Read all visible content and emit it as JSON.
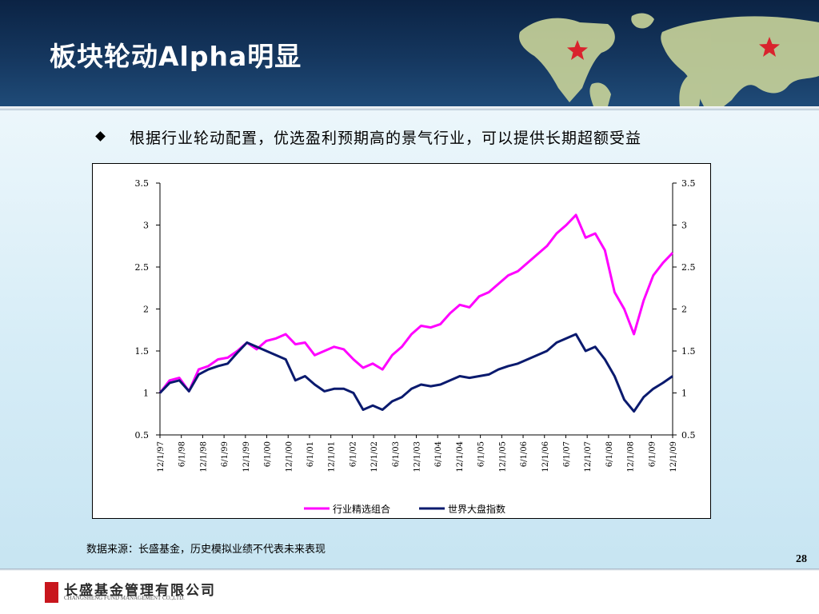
{
  "header": {
    "title": "板块轮动Alpha明显"
  },
  "bullet": {
    "text": "根据行业轮动配置，优选盈利预期高的景气行业，可以提供长期超额受益"
  },
  "source": {
    "text": "数据来源：长盛基金，历史模拟业绩不代表未来表现"
  },
  "page_number": "28",
  "logo": {
    "cn": "长盛基金管理有限公司",
    "en": "CHANGSHENG FUND MANAGEMENT CO.,LTD.",
    "seal": "长盛"
  },
  "colors": {
    "series1": "#ff00ff",
    "series2": "#0a1a6e",
    "header": "#15375f",
    "star": "#d9232d"
  },
  "chart_data": {
    "type": "line",
    "title": "",
    "ylim": [
      0.5,
      3.5
    ],
    "yticks": [
      "0.5",
      "1",
      "1.5",
      "2",
      "2.5",
      "3",
      "3.5"
    ],
    "y2ticks": [
      "0.5",
      "1",
      "1.5",
      "2",
      "2.5",
      "3",
      "3.5"
    ],
    "xticks": [
      "12/1/97",
      "6/1/98",
      "12/1/98",
      "6/1/99",
      "12/1/99",
      "6/1/00",
      "12/1/00",
      "6/1/01",
      "12/1/01",
      "6/1/02",
      "12/1/02",
      "6/1/03",
      "12/1/03",
      "6/1/04",
      "12/1/04",
      "6/1/05",
      "12/1/05",
      "6/1/06",
      "12/1/06",
      "6/1/07",
      "12/1/07",
      "6/1/08",
      "12/1/08",
      "6/1/09",
      "12/1/09"
    ],
    "legend_position": "bottom",
    "series": [
      {
        "name": "行业精选组合",
        "values": [
          1.0,
          1.15,
          1.18,
          1.02,
          1.28,
          1.32,
          1.4,
          1.42,
          1.5,
          1.6,
          1.52,
          1.62,
          1.65,
          1.7,
          1.58,
          1.6,
          1.45,
          1.5,
          1.55,
          1.52,
          1.4,
          1.3,
          1.35,
          1.28,
          1.45,
          1.55,
          1.7,
          1.8,
          1.78,
          1.82,
          1.95,
          2.05,
          2.02,
          2.15,
          2.2,
          2.3,
          2.4,
          2.45,
          2.55,
          2.65,
          2.75,
          2.9,
          3.0,
          3.12,
          2.85,
          2.9,
          2.7,
          2.2,
          2.0,
          1.7,
          2.1,
          2.4,
          2.55,
          2.67
        ]
      },
      {
        "name": "世界大盘指数",
        "values": [
          1.0,
          1.12,
          1.15,
          1.02,
          1.22,
          1.28,
          1.32,
          1.35,
          1.48,
          1.6,
          1.55,
          1.5,
          1.45,
          1.4,
          1.15,
          1.2,
          1.1,
          1.02,
          1.05,
          1.05,
          1.0,
          0.8,
          0.85,
          0.8,
          0.9,
          0.95,
          1.05,
          1.1,
          1.08,
          1.1,
          1.15,
          1.2,
          1.18,
          1.2,
          1.22,
          1.28,
          1.32,
          1.35,
          1.4,
          1.45,
          1.5,
          1.6,
          1.65,
          1.7,
          1.5,
          1.55,
          1.4,
          1.2,
          0.92,
          0.78,
          0.95,
          1.05,
          1.12,
          1.2
        ]
      }
    ]
  }
}
